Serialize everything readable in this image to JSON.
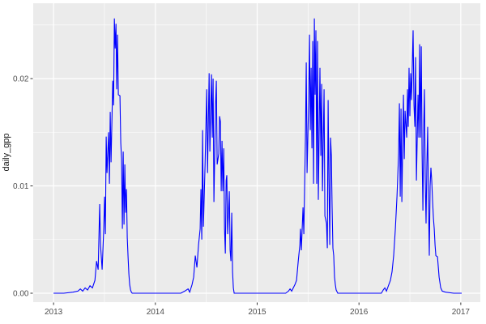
{
  "chart_data": {
    "type": "line",
    "title": "",
    "xlabel": "",
    "ylabel": "daily_gpp",
    "legend_position": "none",
    "grid": true,
    "x_domain": [
      2012.8,
      2017.192
    ],
    "y_domain": [
      -0.00083,
      0.02702
    ],
    "x_ticks": [
      2013,
      2014,
      2015,
      2016,
      2017
    ],
    "x_tick_labels": [
      "2013",
      "2014",
      "2015",
      "2016",
      "2017"
    ],
    "x_minor_ticks": [
      2013.5,
      2014.5,
      2015.5,
      2016.5
    ],
    "y_ticks": [
      0.0,
      0.01,
      0.02
    ],
    "y_tick_labels": [
      "0.00",
      "0.01",
      "0.02"
    ],
    "y_minor_ticks": [
      0.005,
      0.015,
      0.025
    ],
    "style": {
      "line_color": "#0000FF",
      "panel_bg": "#EBEBEB",
      "grid_major_color": "#FFFFFF",
      "grid_minor_color": "#FFFFFF",
      "axis_text_color": "#4D4D4D",
      "axis_title_color": "#1A1A1A",
      "tick_mark_color": "#333333",
      "outer_bg": "#FFFFFF"
    },
    "series": [
      {
        "name": "daily_gpp",
        "points": [
          [
            2013.0,
            0.0
          ],
          [
            2013.1,
            0.0
          ],
          [
            2013.191,
            0.0001
          ],
          [
            2013.239,
            0.0002
          ],
          [
            2013.263,
            0.0004
          ],
          [
            2013.286,
            0.0002
          ],
          [
            2013.31,
            0.0005
          ],
          [
            2013.334,
            0.0003
          ],
          [
            2013.358,
            0.0007
          ],
          [
            2013.382,
            0.0005
          ],
          [
            2013.406,
            0.0012
          ],
          [
            2013.422,
            0.003
          ],
          [
            2013.438,
            0.0022
          ],
          [
            2013.453,
            0.0083
          ],
          [
            2013.461,
            0.0045
          ],
          [
            2013.477,
            0.0022
          ],
          [
            2013.493,
            0.006
          ],
          [
            2013.501,
            0.009
          ],
          [
            2013.509,
            0.0055
          ],
          [
            2013.517,
            0.0146
          ],
          [
            2013.525,
            0.0112
          ],
          [
            2013.541,
            0.015
          ],
          [
            2013.549,
            0.0102
          ],
          [
            2013.557,
            0.0169
          ],
          [
            2013.565,
            0.0122
          ],
          [
            2013.581,
            0.0198
          ],
          [
            2013.589,
            0.0175
          ],
          [
            2013.597,
            0.0256
          ],
          [
            2013.605,
            0.0228
          ],
          [
            2013.613,
            0.0251
          ],
          [
            2013.62,
            0.019
          ],
          [
            2013.628,
            0.0241
          ],
          [
            2013.636,
            0.0185
          ],
          [
            2013.652,
            0.0184
          ],
          [
            2013.66,
            0.014
          ],
          [
            2013.668,
            0.0125
          ],
          [
            2013.676,
            0.006
          ],
          [
            2013.684,
            0.0132
          ],
          [
            2013.692,
            0.0064
          ],
          [
            2013.7,
            0.012
          ],
          [
            2013.708,
            0.0075
          ],
          [
            2013.716,
            0.0097
          ],
          [
            2013.724,
            0.0052
          ],
          [
            2013.732,
            0.0034
          ],
          [
            2013.74,
            0.0018
          ],
          [
            2013.748,
            0.0008
          ],
          [
            2013.756,
            0.0003
          ],
          [
            2013.764,
            0.0001
          ],
          [
            2013.772,
            0.0
          ],
          [
            2013.9,
            0.0
          ],
          [
            2014.0,
            0.0
          ],
          [
            2014.15,
            0.0
          ],
          [
            2014.25,
            0.0
          ],
          [
            2014.289,
            0.0002
          ],
          [
            2014.321,
            0.0004
          ],
          [
            2014.337,
            0.0001
          ],
          [
            2014.36,
            0.0008
          ],
          [
            2014.376,
            0.0015
          ],
          [
            2014.392,
            0.0035
          ],
          [
            2014.408,
            0.0024
          ],
          [
            2014.424,
            0.0045
          ],
          [
            2014.44,
            0.006
          ],
          [
            2014.448,
            0.0097
          ],
          [
            2014.456,
            0.005
          ],
          [
            2014.464,
            0.0152
          ],
          [
            2014.472,
            0.0062
          ],
          [
            2014.488,
            0.012
          ],
          [
            2014.504,
            0.019
          ],
          [
            2014.512,
            0.0112
          ],
          [
            2014.528,
            0.0205
          ],
          [
            2014.535,
            0.0132
          ],
          [
            2014.551,
            0.0204
          ],
          [
            2014.559,
            0.0145
          ],
          [
            2014.567,
            0.02
          ],
          [
            2014.575,
            0.0085
          ],
          [
            2014.591,
            0.0175
          ],
          [
            2014.599,
            0.0198
          ],
          [
            2014.607,
            0.012
          ],
          [
            2014.623,
            0.013
          ],
          [
            2014.631,
            0.0165
          ],
          [
            2014.639,
            0.016
          ],
          [
            2014.647,
            0.0095
          ],
          [
            2014.655,
            0.0142
          ],
          [
            2014.663,
            0.0095
          ],
          [
            2014.671,
            0.0135
          ],
          [
            2014.679,
            0.006
          ],
          [
            2014.687,
            0.0037
          ],
          [
            2014.695,
            0.0105
          ],
          [
            2014.702,
            0.011
          ],
          [
            2014.71,
            0.0055
          ],
          [
            2014.726,
            0.0095
          ],
          [
            2014.734,
            0.004
          ],
          [
            2014.742,
            0.003
          ],
          [
            2014.75,
            0.0075
          ],
          [
            2014.758,
            0.002
          ],
          [
            2014.766,
            0.0005
          ],
          [
            2014.774,
            0.0
          ],
          [
            2014.9,
            0.0
          ],
          [
            2015.0,
            0.0
          ],
          [
            2015.15,
            0.0
          ],
          [
            2015.28,
            0.0
          ],
          [
            2015.307,
            0.0002
          ],
          [
            2015.323,
            0.0004
          ],
          [
            2015.339,
            0.0002
          ],
          [
            2015.355,
            0.0005
          ],
          [
            2015.371,
            0.0008
          ],
          [
            2015.387,
            0.0012
          ],
          [
            2015.403,
            0.003
          ],
          [
            2015.419,
            0.0045
          ],
          [
            2015.426,
            0.006
          ],
          [
            2015.434,
            0.004
          ],
          [
            2015.45,
            0.008
          ],
          [
            2015.458,
            0.0055
          ],
          [
            2015.474,
            0.0145
          ],
          [
            2015.482,
            0.0215
          ],
          [
            2015.49,
            0.0112
          ],
          [
            2015.506,
            0.018
          ],
          [
            2015.514,
            0.0241
          ],
          [
            2015.522,
            0.0152
          ],
          [
            2015.53,
            0.021
          ],
          [
            2015.538,
            0.0135
          ],
          [
            2015.546,
            0.0235
          ],
          [
            2015.554,
            0.0102
          ],
          [
            2015.562,
            0.0256
          ],
          [
            2015.569,
            0.0185
          ],
          [
            2015.577,
            0.0245
          ],
          [
            2015.585,
            0.0102
          ],
          [
            2015.593,
            0.0235
          ],
          [
            2015.601,
            0.0087
          ],
          [
            2015.617,
            0.021
          ],
          [
            2015.625,
            0.0128
          ],
          [
            2015.633,
            0.0195
          ],
          [
            2015.641,
            0.0095
          ],
          [
            2015.657,
            0.019
          ],
          [
            2015.665,
            0.0072
          ],
          [
            2015.681,
            0.0065
          ],
          [
            2015.689,
            0.0042
          ],
          [
            2015.697,
            0.018
          ],
          [
            2015.705,
            0.0105
          ],
          [
            2015.713,
            0.0045
          ],
          [
            2015.721,
            0.0145
          ],
          [
            2015.729,
            0.0128
          ],
          [
            2015.736,
            0.008
          ],
          [
            2015.744,
            0.0042
          ],
          [
            2015.752,
            0.0035
          ],
          [
            2015.76,
            0.0015
          ],
          [
            2015.768,
            0.0008
          ],
          [
            2015.776,
            0.0003
          ],
          [
            2015.792,
            0.0
          ],
          [
            2015.9,
            0.0
          ],
          [
            2016.0,
            0.0
          ],
          [
            2016.15,
            0.0
          ],
          [
            2016.22,
            0.0
          ],
          [
            2016.238,
            0.0003
          ],
          [
            2016.254,
            0.0005
          ],
          [
            2016.27,
            0.0002
          ],
          [
            2016.293,
            0.0008
          ],
          [
            2016.309,
            0.0012
          ],
          [
            2016.325,
            0.002
          ],
          [
            2016.341,
            0.0035
          ],
          [
            2016.357,
            0.006
          ],
          [
            2016.373,
            0.009
          ],
          [
            2016.389,
            0.013
          ],
          [
            2016.397,
            0.0177
          ],
          [
            2016.405,
            0.009
          ],
          [
            2016.413,
            0.0172
          ],
          [
            2016.421,
            0.0085
          ],
          [
            2016.437,
            0.0185
          ],
          [
            2016.445,
            0.0125
          ],
          [
            2016.453,
            0.017
          ],
          [
            2016.469,
            0.0145
          ],
          [
            2016.477,
            0.019
          ],
          [
            2016.484,
            0.0155
          ],
          [
            2016.492,
            0.021
          ],
          [
            2016.5,
            0.0165
          ],
          [
            2016.508,
            0.0205
          ],
          [
            2016.516,
            0.018
          ],
          [
            2016.532,
            0.0245
          ],
          [
            2016.54,
            0.0175
          ],
          [
            2016.548,
            0.0155
          ],
          [
            2016.556,
            0.022
          ],
          [
            2016.564,
            0.0105
          ],
          [
            2016.58,
            0.0185
          ],
          [
            2016.588,
            0.0145
          ],
          [
            2016.596,
            0.0232
          ],
          [
            2016.604,
            0.0145
          ],
          [
            2016.612,
            0.023
          ],
          [
            2016.62,
            0.013
          ],
          [
            2016.628,
            0.0077
          ],
          [
            2016.636,
            0.0155
          ],
          [
            2016.643,
            0.019
          ],
          [
            2016.651,
            0.0105
          ],
          [
            2016.659,
            0.0065
          ],
          [
            2016.667,
            0.012
          ],
          [
            2016.675,
            0.0155
          ],
          [
            2016.683,
            0.0085
          ],
          [
            2016.691,
            0.0035
          ],
          [
            2016.699,
            0.01
          ],
          [
            2016.707,
            0.0117
          ],
          [
            2016.715,
            0.0105
          ],
          [
            2016.723,
            0.0085
          ],
          [
            2016.731,
            0.007
          ],
          [
            2016.739,
            0.006
          ],
          [
            2016.747,
            0.0045
          ],
          [
            2016.755,
            0.0035
          ],
          [
            2016.771,
            0.0034
          ],
          [
            2016.787,
            0.0015
          ],
          [
            2016.803,
            0.0005
          ],
          [
            2016.818,
            0.0002
          ],
          [
            2016.85,
            0.0001
          ],
          [
            2016.93,
            0.0
          ],
          [
            2017.009,
            0.0
          ]
        ]
      }
    ]
  }
}
